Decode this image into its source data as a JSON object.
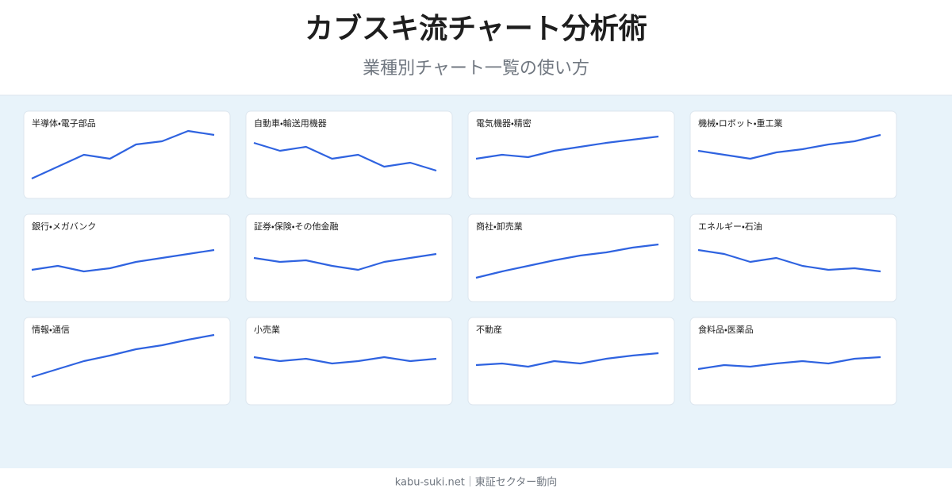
{
  "header": {
    "title": "カブスキ流チャート分析術",
    "subtitle": "業種別チャート一覧の使い方"
  },
  "footer": {
    "text": "kabu-suki.net｜東証セクター動向"
  },
  "chart_data": [
    {
      "type": "line",
      "title": "半導体・電子部品",
      "values": [
        25,
        40,
        55,
        50,
        68,
        72,
        85,
        80
      ],
      "color": "#2f63e0",
      "ylim": [
        0,
        110
      ]
    },
    {
      "type": "line",
      "title": "自動車・輸送用機器",
      "values": [
        70,
        60,
        65,
        50,
        55,
        40,
        45,
        35
      ],
      "color": "#2f63e0",
      "ylim": [
        0,
        110
      ]
    },
    {
      "type": "line",
      "title": "電気機器・精密",
      "values": [
        50,
        55,
        52,
        60,
        65,
        70,
        74,
        78
      ],
      "color": "#2f63e0",
      "ylim": [
        0,
        110
      ]
    },
    {
      "type": "line",
      "title": "機械・ロボット・重工業",
      "values": [
        60,
        55,
        50,
        58,
        62,
        68,
        72,
        80
      ],
      "color": "#2f63e0",
      "ylim": [
        0,
        110
      ]
    },
    {
      "type": "line",
      "title": "銀行・メガバンク",
      "values": [
        40,
        45,
        38,
        42,
        50,
        55,
        60,
        65
      ],
      "color": "#2f63e0",
      "ylim": [
        0,
        110
      ]
    },
    {
      "type": "line",
      "title": "証券・保険・その他金融",
      "values": [
        55,
        50,
        52,
        45,
        40,
        50,
        55,
        60
      ],
      "color": "#2f63e0",
      "ylim": [
        0,
        110
      ]
    },
    {
      "type": "line",
      "title": "商社・卸売業",
      "values": [
        30,
        38,
        45,
        52,
        58,
        62,
        68,
        72
      ],
      "color": "#2f63e0",
      "ylim": [
        0,
        110
      ]
    },
    {
      "type": "line",
      "title": "エネルギー・石油",
      "values": [
        65,
        60,
        50,
        55,
        45,
        40,
        42,
        38
      ],
      "color": "#2f63e0",
      "ylim": [
        0,
        110
      ]
    },
    {
      "type": "line",
      "title": "情報・通信",
      "values": [
        35,
        45,
        55,
        62,
        70,
        75,
        82,
        88
      ],
      "color": "#2f63e0",
      "ylim": [
        0,
        110
      ]
    },
    {
      "type": "line",
      "title": "小売業",
      "values": [
        60,
        55,
        58,
        52,
        55,
        60,
        55,
        58
      ],
      "color": "#2f63e0",
      "ylim": [
        0,
        110
      ]
    },
    {
      "type": "line",
      "title": "不動産",
      "values": [
        50,
        52,
        48,
        55,
        52,
        58,
        62,
        65
      ],
      "color": "#2f63e0",
      "ylim": [
        0,
        110
      ]
    },
    {
      "type": "line",
      "title": "食料品・医薬品",
      "values": [
        45,
        50,
        48,
        52,
        55,
        52,
        58,
        60
      ],
      "color": "#2f63e0",
      "ylim": [
        0,
        110
      ]
    }
  ]
}
